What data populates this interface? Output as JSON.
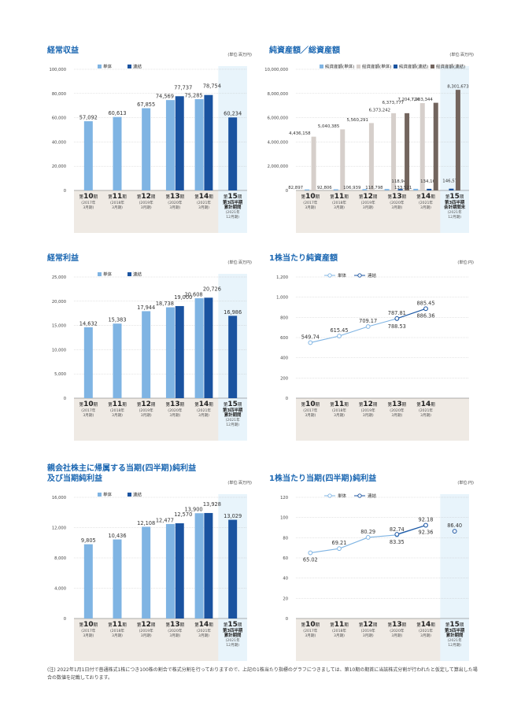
{
  "panels": [
    {
      "title": "経常収益",
      "unit": "(単位:百万円)",
      "chart_data": {
        "type": "bar",
        "categories": [
          "10",
          "11",
          "12",
          "13",
          "14",
          "15"
        ],
        "period_sub": [
          "(2017年 3月期)",
          "(2018年 3月期)",
          "(2019年 3月期)",
          "(2020年 3月期)",
          "(2021年 3月期)",
          "第3四半期 累計期間 (2021年 12月期)"
        ],
        "series": [
          {
            "name": "単体",
            "values": [
              57092,
              60613,
              67855,
              74569,
              75285,
              null
            ]
          },
          {
            "name": "連結",
            "values": [
              null,
              null,
              null,
              77737,
              78754,
              60234
            ]
          }
        ],
        "value_labels": [
          [
            "57,092",
            "60,613",
            "67,855",
            "74,569",
            "75,285",
            ""
          ],
          [
            "",
            "",
            "",
            "77,737",
            "78,754",
            "60,234"
          ]
        ],
        "yticks": [
          "0",
          "20,000",
          "40,000",
          "60,000",
          "80,000",
          "100,000"
        ],
        "ylim": [
          0,
          100000
        ]
      }
    },
    {
      "title": "純資産額／総資産額",
      "unit": "(単位:百万円)",
      "chart_data": {
        "type": "bar",
        "categories": [
          "10",
          "11",
          "12",
          "13",
          "14",
          "15"
        ],
        "period_sub": [
          "(2017年 3月期)",
          "(2018年 3月期)",
          "(2019年 3月期)",
          "(2020年 3月期)",
          "(2021年 3月期)",
          "第3四半期 会計期間末 (2021年 12月期)"
        ],
        "series": [
          {
            "name": "純資産額(単体)",
            "values": [
              82897,
              92806,
              106939,
              118798,
              133521,
              null
            ]
          },
          {
            "name": "総資産額(単体)",
            "values": [
              4436158,
              5040385,
              5560291,
              6373242,
              7204724,
              null
            ]
          },
          {
            "name": "純資産額(連結)",
            "values": [
              null,
              null,
              null,
              118944,
              134162,
              146570
            ]
          },
          {
            "name": "総資産額(連結)",
            "values": [
              null,
              null,
              null,
              6373777,
              7233344,
              8301673
            ]
          }
        ],
        "value_labels": [
          [
            "82,897",
            "92,806",
            "106,939",
            "118,798",
            "133,521",
            ""
          ],
          [
            "4,436,158",
            "5,040,385",
            "5,560,291",
            "6,373,242",
            "7,204,724",
            ""
          ],
          [
            "",
            "",
            "",
            "118,944",
            "134,162",
            "146,570"
          ],
          [
            "",
            "",
            "",
            "6,373,777",
            "7,233,344",
            "8,301,673"
          ]
        ],
        "yticks": [
          "0",
          "2,000,000",
          "4,000,000",
          "6,000,000",
          "8,000,000",
          "10,000,000"
        ],
        "ylim": [
          0,
          10000000
        ]
      }
    },
    {
      "title": "経常利益",
      "unit": "(単位:百万円)",
      "chart_data": {
        "type": "bar",
        "categories": [
          "10",
          "11",
          "12",
          "13",
          "14",
          "15"
        ],
        "period_sub": [
          "(2017年 3月期)",
          "(2018年 3月期)",
          "(2019年 3月期)",
          "(2020年 3月期)",
          "(2021年 3月期)",
          "第3四半期 累計期間 (2021年 12月期)"
        ],
        "series": [
          {
            "name": "単体",
            "values": [
              14632,
              15383,
              17944,
              18738,
              20608,
              null
            ]
          },
          {
            "name": "連結",
            "values": [
              null,
              null,
              null,
              19000,
              20726,
              16986
            ]
          }
        ],
        "value_labels": [
          [
            "14,632",
            "15,383",
            "17,944",
            "18,738",
            "20,608",
            ""
          ],
          [
            "",
            "",
            "",
            "19,000",
            "20,726",
            "16,986"
          ]
        ],
        "yticks": [
          "0",
          "5,000",
          "10,000",
          "15,000",
          "20,000",
          "25,000"
        ],
        "ylim": [
          0,
          25000
        ]
      }
    },
    {
      "title": "1株当たり純資産額",
      "unit": "(単位:円)",
      "chart_data": {
        "type": "line",
        "categories": [
          "10",
          "11",
          "12",
          "13",
          "14"
        ],
        "period_sub": [
          "(2017年 3月期)",
          "(2018年 3月期)",
          "(2019年 3月期)",
          "(2020年 3月期)",
          "(2021年 3月期)"
        ],
        "series": [
          {
            "name": "単体",
            "values": [
              549.74,
              615.45,
              709.17,
              787.81,
              885.45
            ]
          },
          {
            "name": "連結",
            "values": [
              null,
              null,
              null,
              788.53,
              886.36
            ]
          }
        ],
        "value_labels": [
          [
            "549.74",
            "615.45",
            "709.17",
            "787.81",
            "885.45"
          ],
          [
            "",
            "",
            "",
            "788.53",
            "886.36"
          ]
        ],
        "yticks": [
          "0",
          "200",
          "400",
          "600",
          "800",
          "1,000",
          "1,200"
        ],
        "ylim": [
          0,
          1200
        ]
      }
    },
    {
      "title": "親会社株主に帰属する当期(四半期)純利益\n及び当期純利益",
      "unit": "(単位:百万円)",
      "chart_data": {
        "type": "bar",
        "categories": [
          "10",
          "11",
          "12",
          "13",
          "14",
          "15"
        ],
        "period_sub": [
          "(2017年 3月期)",
          "(2018年 3月期)",
          "(2019年 3月期)",
          "(2020年 3月期)",
          "(2021年 3月期)",
          "第3四半期 累計期間 (2021年 12月期)"
        ],
        "series": [
          {
            "name": "単体",
            "values": [
              9805,
              10436,
              12108,
              12477,
              13900,
              null
            ]
          },
          {
            "name": "連結",
            "values": [
              null,
              null,
              null,
              12570,
              13928,
              13029
            ]
          }
        ],
        "value_labels": [
          [
            "9,805",
            "10,436",
            "12,108",
            "12,477",
            "13,900",
            ""
          ],
          [
            "",
            "",
            "",
            "12,570",
            "13,928",
            "13,029"
          ]
        ],
        "yticks": [
          "0",
          "4,000",
          "8,000",
          "12,000",
          "16,000"
        ],
        "ylim": [
          0,
          16000
        ]
      }
    },
    {
      "title": "1株当たり当期(四半期)純利益",
      "unit": "(単位:円)",
      "chart_data": {
        "type": "line",
        "categories": [
          "10",
          "11",
          "12",
          "13",
          "14",
          "15"
        ],
        "period_sub": [
          "(2017年 3月期)",
          "(2018年 3月期)",
          "(2019年 3月期)",
          "(2020年 3月期)",
          "(2021年 3月期)",
          "第3四半期 累計期間 (2021年 12月期)"
        ],
        "series": [
          {
            "name": "単体",
            "values": [
              65.02,
              69.21,
              80.29,
              82.74,
              92.18,
              null
            ]
          },
          {
            "name": "連結",
            "values": [
              null,
              null,
              null,
              83.35,
              92.36,
              86.4
            ]
          }
        ],
        "value_labels": [
          [
            "65.02",
            "69.21",
            "80.29",
            "82.74",
            "92.18",
            ""
          ],
          [
            "",
            "",
            "",
            "83.35",
            "92.36",
            "86.40"
          ]
        ],
        "yticks": [
          "0",
          "20",
          "40",
          "60",
          "80",
          "100",
          "120"
        ],
        "ylim": [
          0,
          120
        ]
      }
    }
  ],
  "period_prefix": "第",
  "period_suffix": "期",
  "colors": {
    "title": "#1b67b2",
    "single": "#7fb4e3",
    "consolidated": "#1a53a0",
    "total_single": "#d6cfcb",
    "total_consolidated": "#73655e",
    "highlight": "#e8f4fb",
    "axis_band": "#efeae4",
    "grid": "#bbbbbb"
  },
  "note": "(注) 2022年1月1日付で普通株式1株につき100株の割合で株式分割を行っておりますので、上記の1株当たり指標のグラフにつきましては、第10期の期首に当該株式分割が行われたと仮定して算出した場合の数値を記載しております。"
}
